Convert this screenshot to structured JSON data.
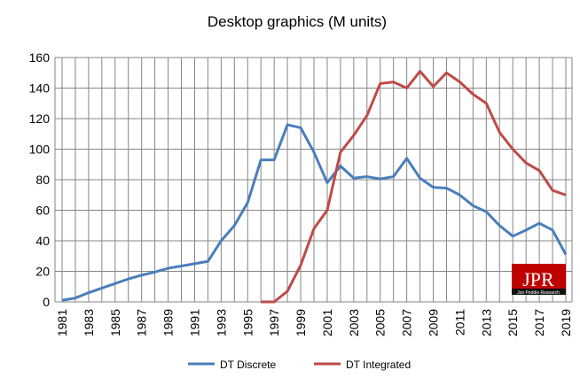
{
  "chart_data": {
    "type": "line",
    "title": "Desktop graphics (M units)",
    "xlabel": "",
    "ylabel": "",
    "ylim": [
      0,
      160
    ],
    "yticks": [
      0,
      20,
      40,
      60,
      80,
      100,
      120,
      140,
      160
    ],
    "x": [
      1981,
      1982,
      1983,
      1984,
      1985,
      1986,
      1987,
      1988,
      1989,
      1990,
      1991,
      1992,
      1993,
      1994,
      1995,
      1996,
      1997,
      1998,
      1999,
      2000,
      2001,
      2002,
      2003,
      2004,
      2005,
      2006,
      2007,
      2008,
      2009,
      2010,
      2011,
      2012,
      2013,
      2014,
      2015,
      2016,
      2017,
      2018,
      2019
    ],
    "xtick_labels": [
      "1981",
      "1983",
      "1985",
      "1987",
      "1989",
      "1991",
      "1993",
      "1995",
      "1997",
      "1999",
      "2001",
      "2003",
      "2005",
      "2007",
      "2009",
      "2011",
      "2013",
      "2015",
      "2017",
      "2019"
    ],
    "grid": true,
    "legend_position": "bottom",
    "series": [
      {
        "name": "DT Discrete",
        "color": "#4a7ebb",
        "values": [
          1,
          2.5,
          6,
          9,
          12,
          15,
          17.5,
          19.5,
          22,
          23.5,
          25,
          26.5,
          40,
          50,
          65,
          93,
          93,
          116,
          114,
          98,
          78,
          89,
          81,
          82,
          80.5,
          82,
          94,
          81,
          75,
          74.5,
          70,
          63,
          59,
          50,
          43,
          47,
          51.5,
          47,
          31
        ]
      },
      {
        "name": "DT Integrated",
        "color": "#be4b48",
        "values": [
          null,
          null,
          null,
          null,
          null,
          null,
          null,
          null,
          null,
          null,
          null,
          null,
          null,
          null,
          null,
          0,
          0,
          7,
          24,
          48,
          60,
          98,
          109,
          122,
          143,
          144,
          140,
          151,
          141,
          150,
          144,
          136,
          130,
          111,
          100,
          91,
          86,
          73,
          70
        ]
      }
    ]
  },
  "logo": {
    "text": "JPR",
    "subtext": "Jon Peddie Research"
  }
}
